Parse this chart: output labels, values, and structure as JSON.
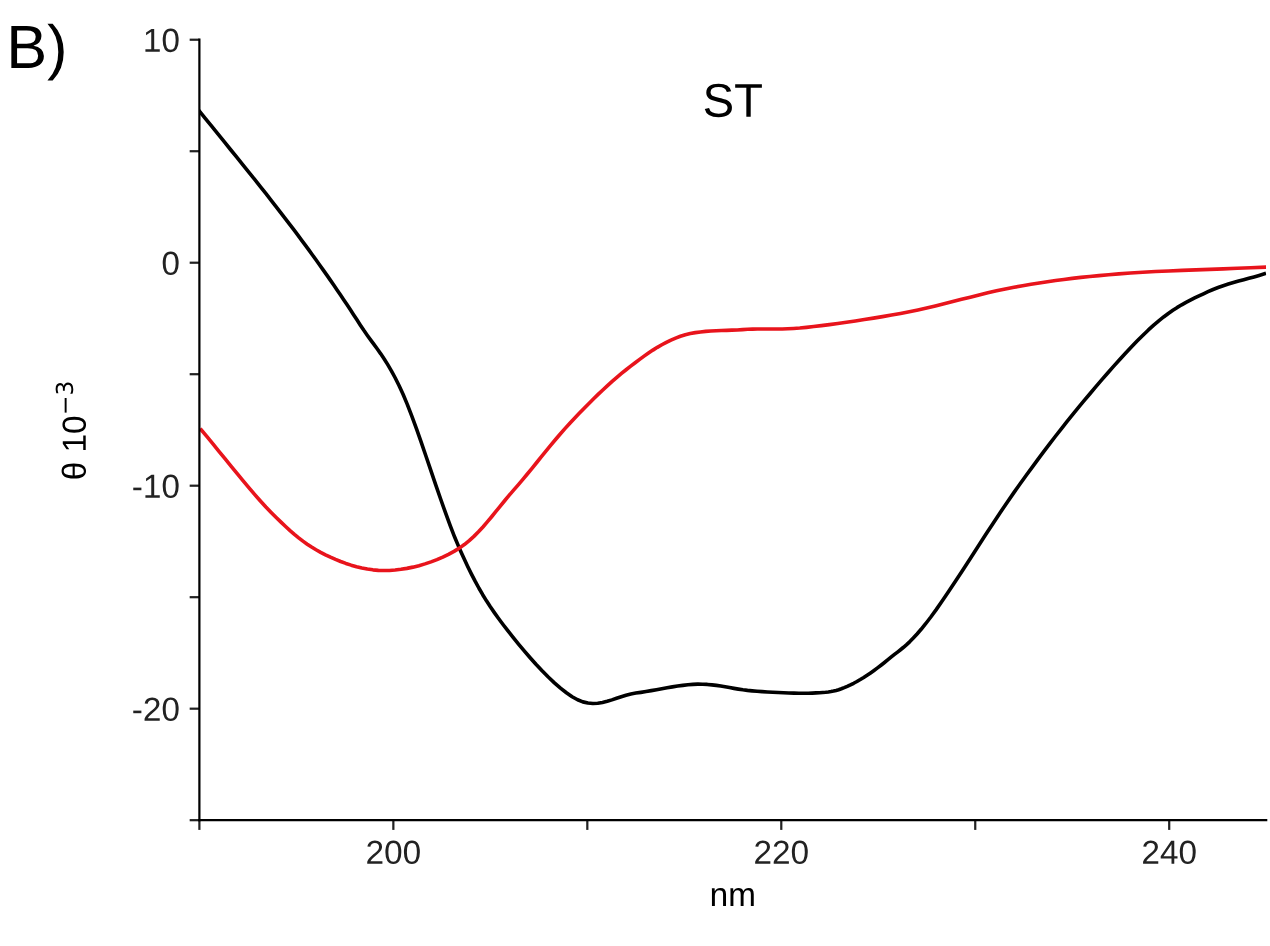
{
  "chart_data": {
    "type": "line",
    "title": "ST",
    "xlabel": "nm",
    "ylabel": "θ 10$^{−3}$",
    "annotations": [
      "B)"
    ],
    "xlim": [
      190,
      245
    ],
    "xticks": [
      {
        "value": 190,
        "label": null
      },
      200,
      {
        "value": 210,
        "label": null
      },
      220,
      {
        "value": 230,
        "label": null
      },
      240
    ],
    "ylim": [
      -25,
      10
    ],
    "yticks": [
      {
        "value": -25,
        "label": null
      },
      -20,
      {
        "value": -15,
        "label": null
      },
      -10,
      {
        "value": -5,
        "label": null
      },
      0,
      {
        "value": 5,
        "label": null
      },
      10
    ],
    "marker": "none",
    "line_style": "solid",
    "series": [
      {
        "color": "#000000",
        "x": [
          190,
          193.7,
          196.2,
          198.3,
          200.5,
          203.4,
          205.9,
          209.5,
          212.5,
          215.7,
          218.5,
          221.6,
          223.4,
          225.5,
          227.7,
          232.0,
          235.6,
          239.2,
          242,
          244.9
        ],
        "values": [
          6.8,
          2.8,
          -0.1,
          -2.8,
          -5.9,
          -12.8,
          -16.5,
          -19.6,
          -19.3,
          -18.9,
          -19.2,
          -19.3,
          -19.0,
          -17.8,
          -15.9,
          -10.3,
          -6.2,
          -2.8,
          -1.3,
          -0.5
        ]
      },
      {
        "color": "#e8141c",
        "x": [
          190.1,
          193.7,
          196.5,
          199.8,
          203.4,
          206.2,
          209.1,
          212,
          214.8,
          218,
          221.3,
          226.6,
          232.0,
          237.4,
          244.9
        ],
        "values": [
          -7.5,
          -11.2,
          -13.1,
          -13.8,
          -12.8,
          -10.2,
          -7.2,
          -4.8,
          -3.3,
          -3.0,
          -2.9,
          -2.2,
          -1.1,
          -0.5,
          -0.2
        ]
      }
    ]
  }
}
